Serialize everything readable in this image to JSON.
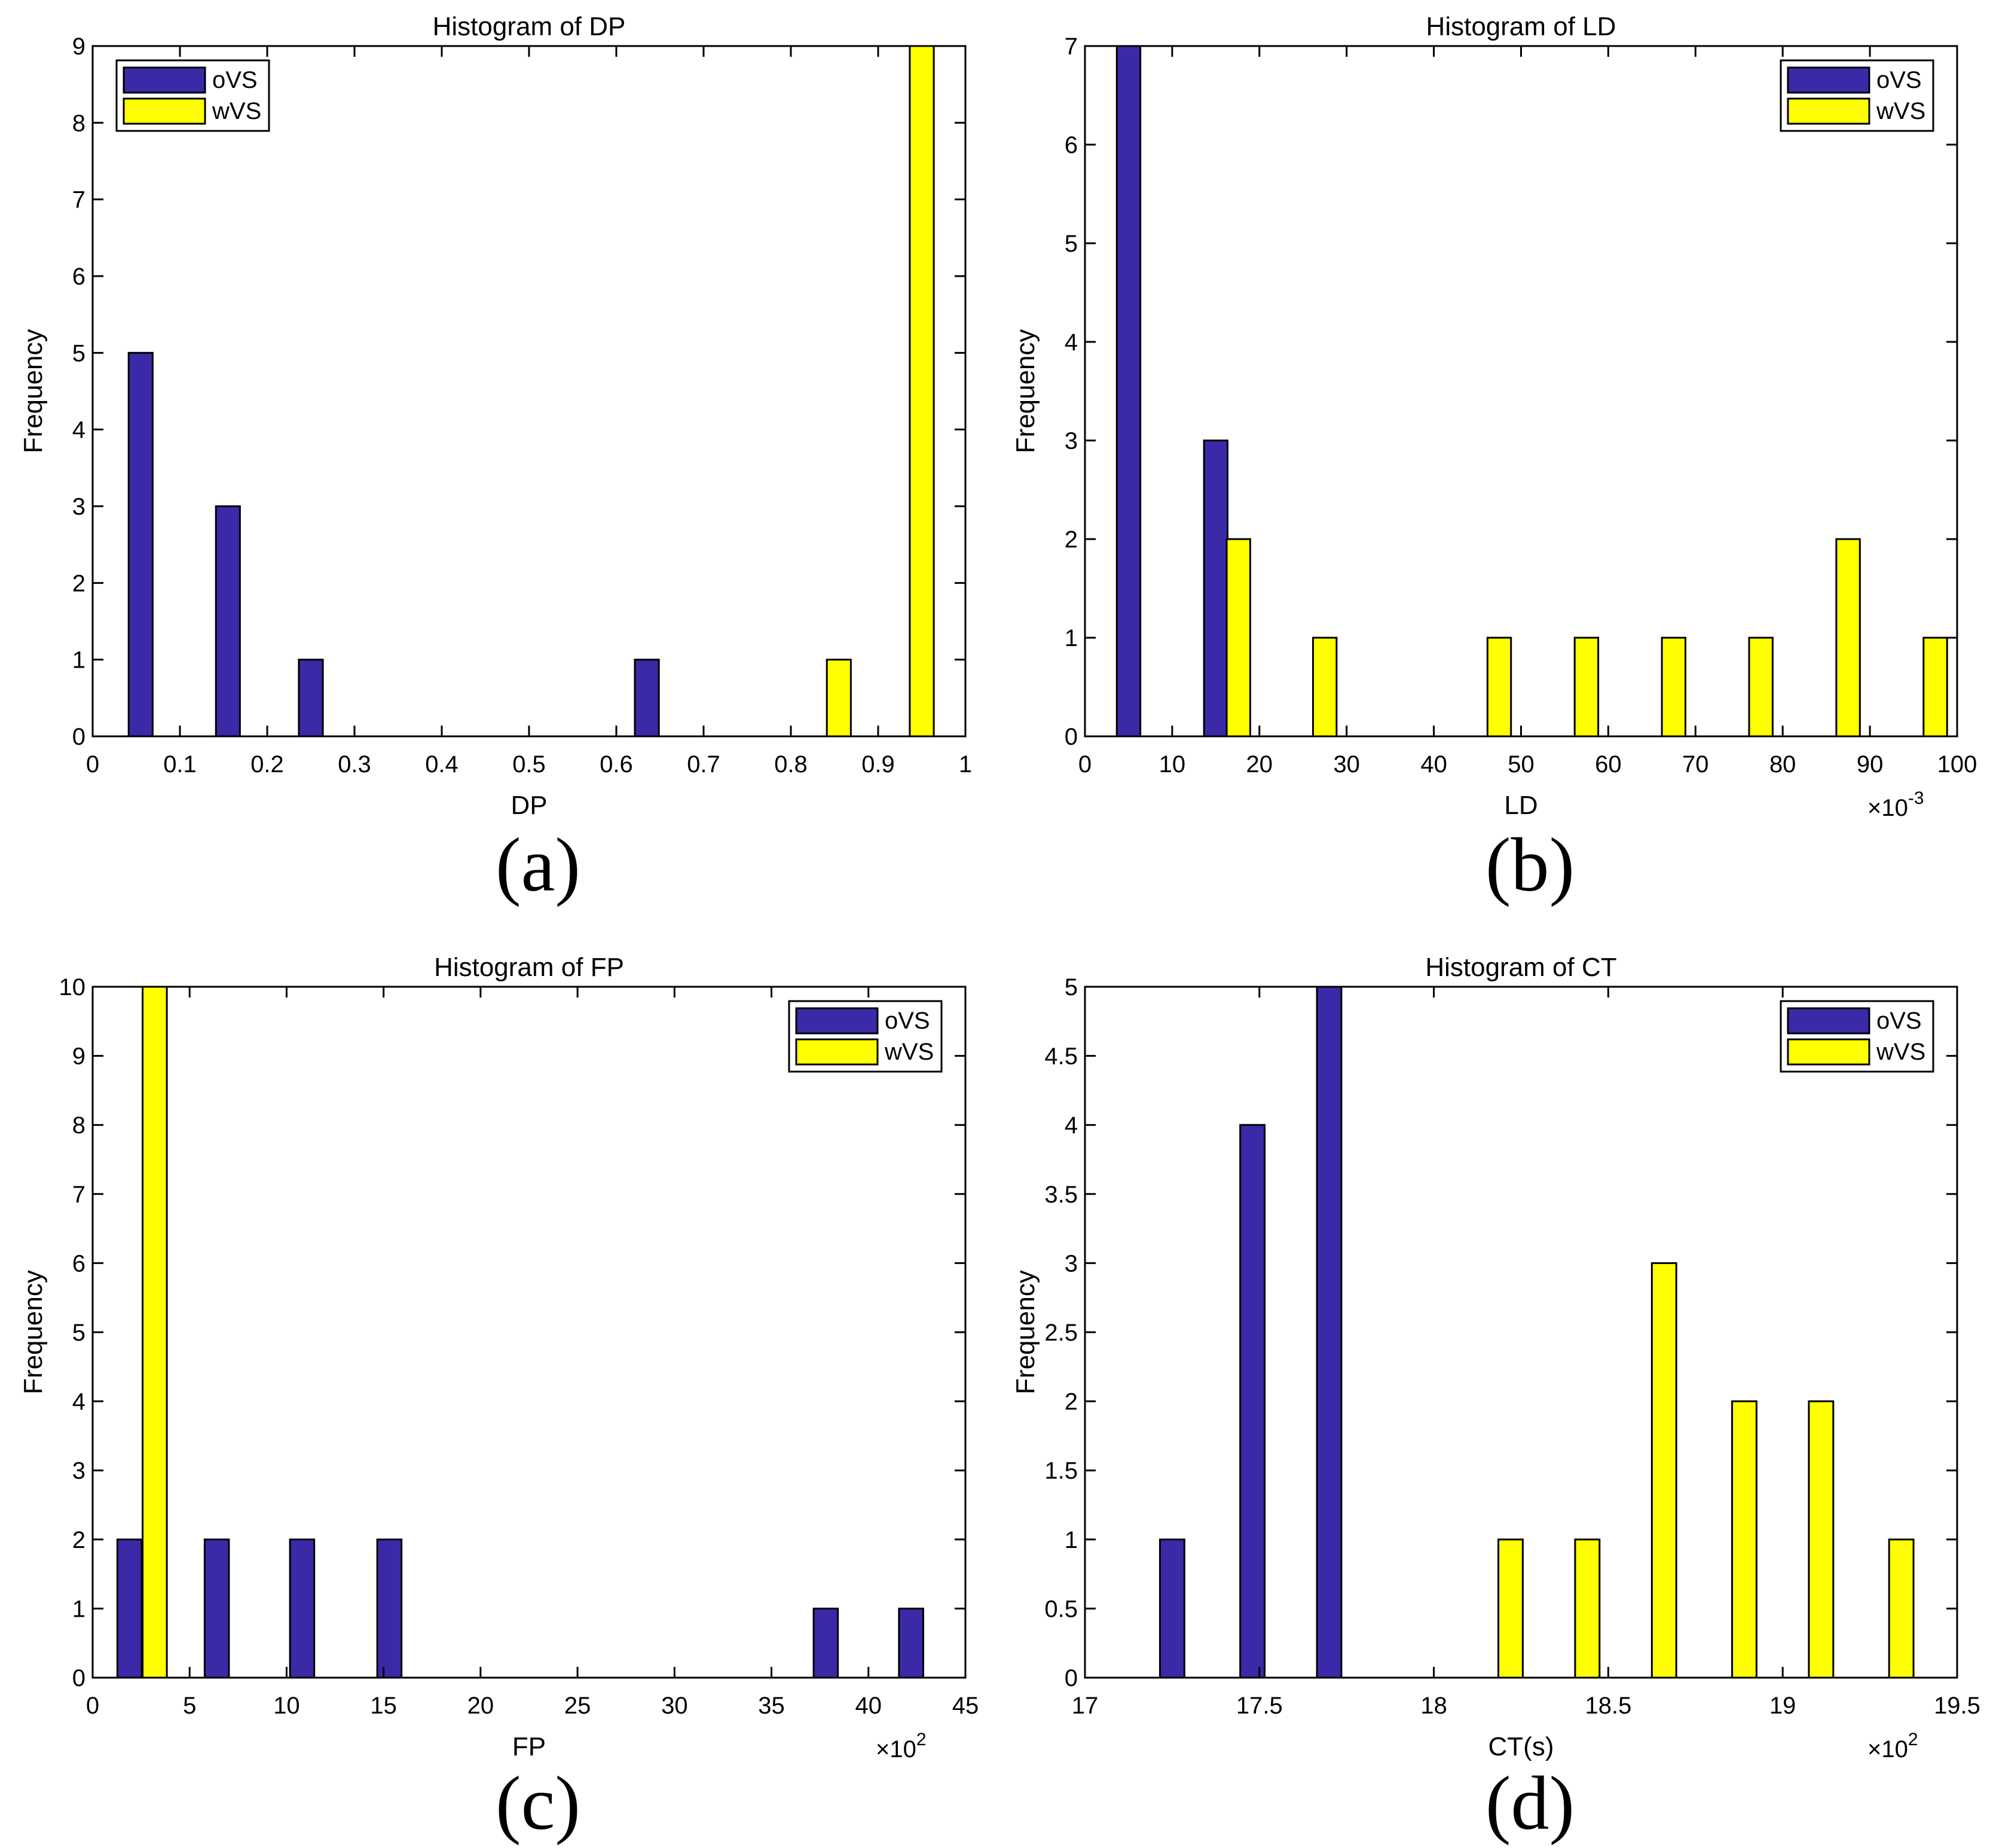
{
  "colors": {
    "oVS": "#3a2aa7",
    "wVS": "#ffff00",
    "axis": "#000000",
    "background": "#ffffff"
  },
  "chart_data": [
    {
      "type": "bar",
      "panel_label": "(a)",
      "title": "Histogram of DP",
      "xlabel": "DP",
      "ylabel": "Frequency",
      "xlim": [
        0,
        1
      ],
      "ylim": [
        0,
        9
      ],
      "xticks": [
        "0",
        "0.1",
        "0.2",
        "0.3",
        "0.4",
        "0.5",
        "0.6",
        "0.7",
        "0.8",
        "0.9",
        "1"
      ],
      "yticks": [
        "0",
        "1",
        "2",
        "3",
        "4",
        "5",
        "6",
        "7",
        "8",
        "9"
      ],
      "exponent": null,
      "bar_width": 0.0275,
      "legend": {
        "placement": "top-left",
        "entries": [
          "oVS",
          "wVS"
        ]
      },
      "series": [
        {
          "name": "oVS",
          "color": "#3a2aa7",
          "x": [
            0.055,
            0.155,
            0.25,
            0.635
          ],
          "values": [
            5,
            3,
            1,
            1
          ]
        },
        {
          "name": "wVS",
          "color": "#ffff00",
          "x": [
            0.855,
            0.95
          ],
          "values": [
            1,
            9
          ]
        }
      ]
    },
    {
      "type": "bar",
      "panel_label": "(b)",
      "title": "Histogram of LD",
      "xlabel": "LD",
      "ylabel": "Frequency",
      "xlim": [
        0,
        100
      ],
      "ylim": [
        0,
        7
      ],
      "xticks": [
        "0",
        "10",
        "20",
        "30",
        "40",
        "50",
        "60",
        "70",
        "80",
        "90",
        "100"
      ],
      "yticks": [
        "0",
        "1",
        "2",
        "3",
        "4",
        "5",
        "6",
        "7"
      ],
      "exponent": "-3",
      "bar_width": 2.7,
      "legend": {
        "placement": "top-right",
        "entries": [
          "oVS",
          "wVS"
        ]
      },
      "series": [
        {
          "name": "oVS",
          "color": "#3a2aa7",
          "x": [
            5,
            15
          ],
          "values": [
            7,
            3
          ]
        },
        {
          "name": "wVS",
          "color": "#ffff00",
          "x": [
            17.6,
            27.5,
            47.5,
            57.5,
            67.5,
            77.5,
            87.5,
            97.5
          ],
          "values": [
            2,
            1,
            1,
            1,
            1,
            1,
            2,
            1
          ]
        }
      ]
    },
    {
      "type": "bar",
      "panel_label": "(c)",
      "title": "Histogram of FP",
      "xlabel": "FP",
      "ylabel": "Frequency",
      "xlim": [
        0,
        45
      ],
      "ylim": [
        0,
        10
      ],
      "xticks": [
        "0",
        "5",
        "10",
        "15",
        "20",
        "25",
        "30",
        "35",
        "40",
        "45"
      ],
      "yticks": [
        "0",
        "1",
        "2",
        "3",
        "4",
        "5",
        "6",
        "7",
        "8",
        "9",
        "10"
      ],
      "exponent": "2",
      "bar_width": 1.25,
      "legend": {
        "placement": "top-right",
        "entries": [
          "oVS",
          "wVS"
        ]
      },
      "series": [
        {
          "name": "oVS",
          "color": "#3a2aa7",
          "x": [
            1.9,
            6.4,
            10.8,
            15.3,
            37.8,
            42.2
          ],
          "values": [
            2,
            2,
            2,
            2,
            1,
            1
          ]
        },
        {
          "name": "wVS",
          "color": "#ffff00",
          "x": [
            3.2
          ],
          "values": [
            10
          ]
        }
      ]
    },
    {
      "type": "bar",
      "panel_label": "(d)",
      "title": "Histogram of CT",
      "xlabel": "CT(s)",
      "ylabel": "Frequency",
      "xlim": [
        17,
        19.5
      ],
      "ylim": [
        0,
        5
      ],
      "xticks": [
        "17",
        "17.5",
        "18",
        "18.5",
        "19",
        "19.5"
      ],
      "yticks": [
        "0",
        "0.5",
        "1",
        "1.5",
        "2",
        "2.5",
        "3",
        "3.5",
        "4",
        "4.5",
        "5"
      ],
      "exponent": "2",
      "bar_width": 0.07,
      "legend": {
        "placement": "top-right",
        "entries": [
          "oVS",
          "wVS"
        ]
      },
      "series": [
        {
          "name": "oVS",
          "color": "#3a2aa7",
          "x": [
            17.25,
            17.48,
            17.7
          ],
          "values": [
            1,
            4,
            5
          ]
        },
        {
          "name": "wVS",
          "color": "#ffff00",
          "x": [
            18.22,
            18.44,
            18.66,
            18.89,
            19.11,
            19.34
          ],
          "values": [
            1,
            1,
            3,
            2,
            2,
            1
          ]
        }
      ]
    }
  ]
}
